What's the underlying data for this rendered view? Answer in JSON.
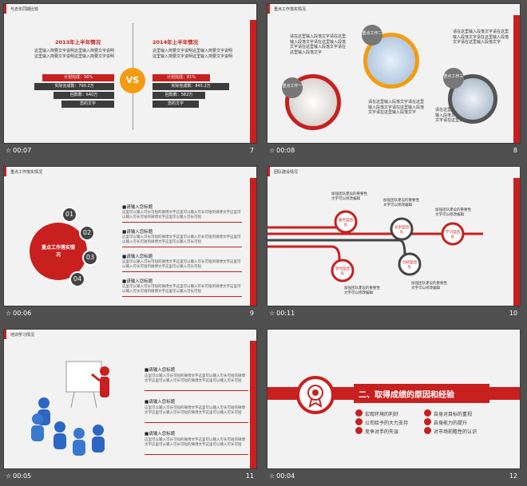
{
  "colors": {
    "accent": "#c8201f",
    "dark": "#3c3c3c",
    "orange": "#f39c12",
    "panel": "#f2f2f2"
  },
  "slides": [
    {
      "footer_time": "00:07",
      "number": "7",
      "title": "与去年同期比较",
      "left_heading": "2013年上半年情况",
      "right_heading": "2014年上半年情况",
      "left_text": "这里输入简要文字说明这里输入简要文字说明这里输入简要文字说明这里输入简要文字说明",
      "right_text": "这里输入简要文字说明这里输入简要文字说明这里输入简要文字说明这里输入简要文字说明",
      "vs": "VS",
      "left_bars": [
        "计划完成：56%",
        "实际完成数：790.2万",
        "回款数：640万",
        "您的文字"
      ],
      "right_bars": [
        "计划完成：61%",
        "实际完成数：845.2万",
        "回款数：582万",
        "您的文字"
      ]
    },
    {
      "footer_time": "00:08",
      "number": "8",
      "title": "重点工作落实情况",
      "tl_text": "请在这里输入段落文字请在这里输入段落文字请在这里输入段落文字请在这里输入段落文字请在这里输入段落文字",
      "tr_text": "请在这里输入段落文字请在这里输入段落文字请在这里输入段落文字请在这里输入段落文字",
      "bl_text": "请在这里输入段落文字请在这里输入段落文字请在这里输入段落文字请在这里输入段落文字",
      "br_text": "请在这里输入段落文字请在这里输入段落文字请在这里输入段落文字请在这里输入段落文字",
      "badge1": "重点工作一",
      "badge2": "重点工作二",
      "badge3": "重点工作三"
    },
    {
      "footer_time": "00:06",
      "number": "9",
      "title": "重点工作落实情况",
      "center": "重点工作落实情况",
      "nums": [
        "01",
        "02",
        "03",
        "04"
      ],
      "items": [
        {
          "h": "■请输入您标题",
          "t": "这里可以输入可长可短的微博文字这里可以输入可长可短的微博文字这里可以输入可长可短的微博文字这里可以输入可长可短"
        },
        {
          "h": "■请输入您标题",
          "t": "这里可以输入可长可短的微博文字这里可以输入可长可短的微博文字这里可以输入可长可短的微博文字这里可以输入可长可短"
        },
        {
          "h": "■请输入您标题",
          "t": "这里可以输入可长可短的微博文字这里可以输入可长可短的微博文字这里可以输入可长可短的微博文字这里可以输入可长可短"
        },
        {
          "h": "■请输入您标题",
          "t": "这里可以输入可长可短的微博文字这里可以输入可长可短的微博文字这里可以输入可长可短的微博文字这里可以输入可长可短"
        }
      ]
    },
    {
      "footer_time": "00:11",
      "number": "10",
      "title": "团队建设情况",
      "nodes": [
        "服务型团队",
        "竞争型团队",
        "学习型团队",
        "合作型团队",
        "创新型团队"
      ],
      "desc": [
        "加强团队建设的重要性文字可以修改编辑",
        "加强团队建设的重要性文字可以修改编辑",
        "加强团队建设的重要性文字可以修改编辑",
        "加强团队建设的重要性文字可以修改编辑",
        "加强团队建设的重要性文字可以修改编辑"
      ]
    },
    {
      "footer_time": "00:05",
      "number": "11",
      "title": "培训学习情况",
      "items": [
        {
          "h": "■请输入您标题",
          "t": "这里可以输入可长可短的微博文字这里可以输入可长可短的微博文字这里可以输入可长可短的微博文字这里可以输入可长可短"
        },
        {
          "h": "■请输入您标题",
          "t": "这里可以输入可长可短的微博文字这里可以输入可长可短的微博文字这里可以输入可长可短的微博文字这里可以输入可长可短"
        },
        {
          "h": "■请输入您标题",
          "t": "这里可以输入可长可短的微博文字这里可以输入可长可短的微博文字这里可以输入可长可短的微博文字这里可以输入可长可短"
        }
      ]
    },
    {
      "footer_time": "00:04",
      "number": "12",
      "heading": "二、取得成绩的原因和经验",
      "bullets_left": [
        "宏观环境的利好",
        "公司给予的大力支持",
        "竞争对手的失误"
      ],
      "bullets_right": [
        "自身对目标的重视",
        "自身能力的提升",
        "对市场前瞻性的认识"
      ]
    }
  ]
}
